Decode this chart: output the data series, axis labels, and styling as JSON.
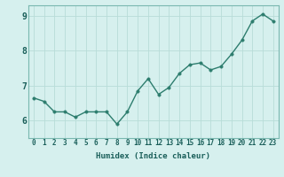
{
  "x": [
    0,
    1,
    2,
    3,
    4,
    5,
    6,
    7,
    8,
    9,
    10,
    11,
    12,
    13,
    14,
    15,
    16,
    17,
    18,
    19,
    20,
    21,
    22,
    23
  ],
  "y": [
    6.65,
    6.55,
    6.25,
    6.25,
    6.1,
    6.25,
    6.25,
    6.25,
    5.9,
    6.25,
    6.85,
    7.2,
    6.75,
    6.95,
    7.35,
    7.6,
    7.65,
    7.45,
    7.55,
    7.9,
    8.3,
    8.85,
    9.05,
    8.85
  ],
  "line_color": "#2d7d6e",
  "marker_color": "#2d7d6e",
  "bg_color": "#d6f0ee",
  "grid_color": "#b8dcd8",
  "xlabel": "Humidex (Indice chaleur)",
  "ylim": [
    5.5,
    9.3
  ],
  "xlim": [
    -0.5,
    23.5
  ],
  "yticks": [
    6,
    7,
    8,
    9
  ],
  "xtick_labels": [
    "0",
    "1",
    "2",
    "3",
    "4",
    "5",
    "6",
    "7",
    "8",
    "9",
    "10",
    "11",
    "12",
    "13",
    "14",
    "15",
    "16",
    "17",
    "18",
    "19",
    "20",
    "21",
    "22",
    "23"
  ],
  "tick_fontsize": 5.5,
  "xlabel_fontsize": 6.5,
  "ytick_fontsize": 7,
  "line_width": 1.0,
  "marker_size": 2.5
}
